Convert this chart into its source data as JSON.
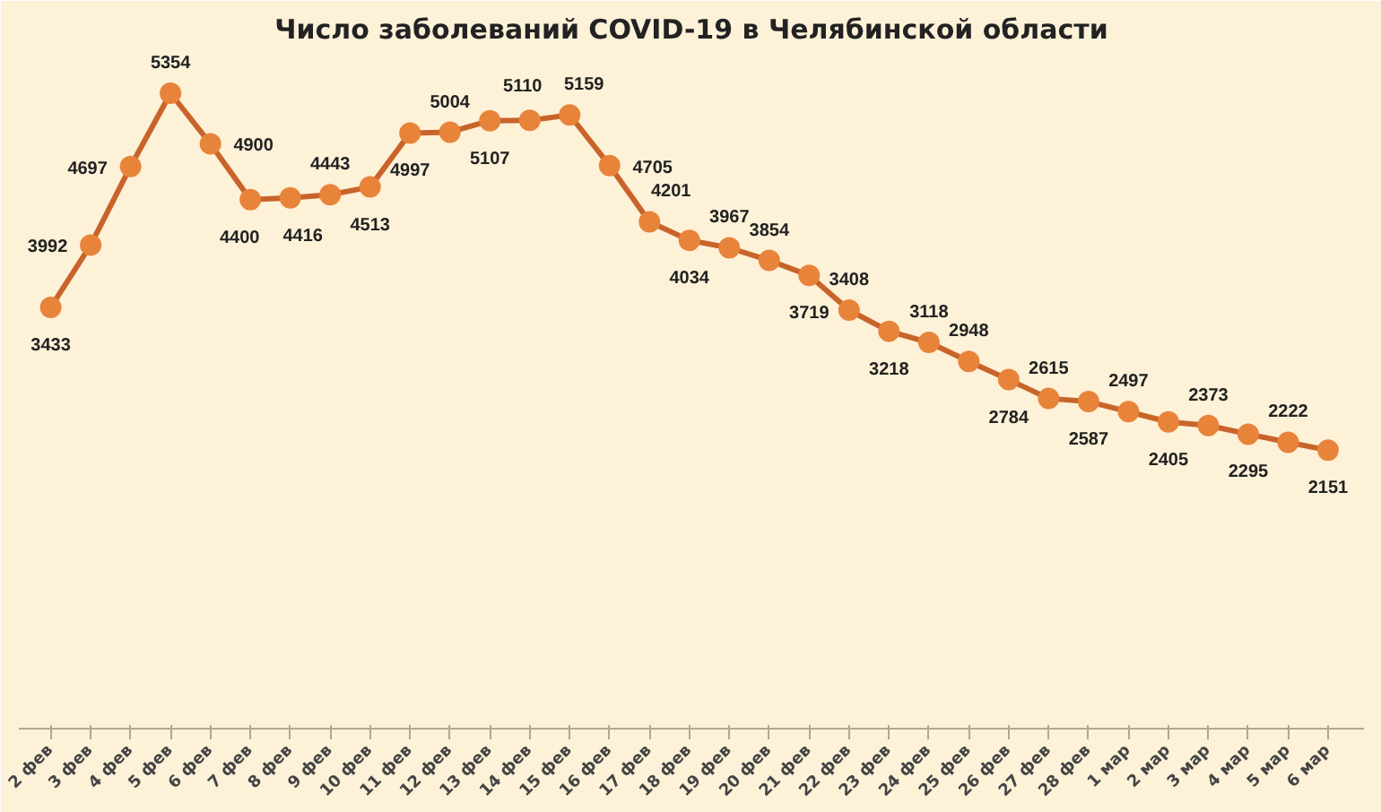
{
  "chart_data": {
    "type": "line",
    "title": "Число заболеваний COVID-19 в Челябинской области",
    "categories": [
      "2 фев",
      "3 фев",
      "4 фев",
      "5 фев",
      "6 фев",
      "7 фев",
      "8 фев",
      "9 фев",
      "10 фев",
      "11 фев",
      "12 фев",
      "13 фев",
      "14 фев",
      "15 фев",
      "16 фев",
      "17 фев",
      "18 фев",
      "19 фев",
      "20 фев",
      "21 фев",
      "22 фев",
      "23 фев",
      "24 фев",
      "25 фев",
      "26 фев",
      "27 фев",
      "28 фев",
      "1 мар",
      "2 мар",
      "3 мар",
      "4 мар",
      "5 мар",
      "6 мар"
    ],
    "series": [
      {
        "color": "#e8843a",
        "values": [
          3433,
          3992,
          4697,
          5354,
          4900,
          4400,
          4416,
          4443,
          4513,
          4997,
          5004,
          5107,
          5110,
          5159,
          4705,
          4201,
          4034,
          3967,
          3854,
          3719,
          3408,
          3218,
          3118,
          2948,
          2784,
          2615,
          2587,
          2497,
          2405,
          2373,
          2295,
          2222,
          2151
        ]
      }
    ],
    "data_labels": true,
    "marker": "circle",
    "line_style": "solid",
    "tick_labels": "x"
  }
}
